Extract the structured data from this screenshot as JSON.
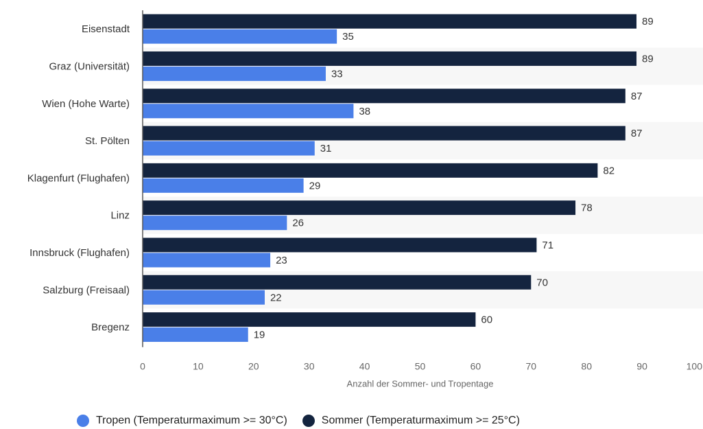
{
  "colors": {
    "tropen": "#4a7fe8",
    "sommer": "#14243f",
    "band": "#f7f7f7",
    "axis": "#555555"
  },
  "legend": {
    "tropen": "Tropen (Temperaturmaximum >= 30°C)",
    "sommer": "Sommer (Temperaturmaximum >= 25°C)"
  },
  "chart_data": {
    "type": "bar",
    "orientation": "horizontal",
    "categories": [
      "Eisenstadt",
      "Graz (Universität)",
      "Wien (Hohe Warte)",
      "St. Pölten",
      "Klagenfurt (Flughafen)",
      "Linz",
      "Innsbruck (Flughafen)",
      "Salzburg (Freisaal)",
      "Bregenz"
    ],
    "series": [
      {
        "name": "Sommer (Temperaturmaximum >= 25°C)",
        "values": [
          89,
          89,
          87,
          87,
          82,
          78,
          71,
          70,
          60
        ]
      },
      {
        "name": "Tropen (Temperaturmaximum >= 30°C)",
        "values": [
          35,
          33,
          38,
          31,
          29,
          26,
          23,
          22,
          19
        ]
      }
    ],
    "xlabel": "Anzahl der Sommer- und Tropentage",
    "ylabel": "",
    "xlim": [
      0,
      100
    ],
    "xticks": [
      0,
      10,
      20,
      30,
      40,
      50,
      60,
      70,
      80,
      90,
      100
    ],
    "grid": false,
    "legend_position": "bottom",
    "data_labels": true
  }
}
